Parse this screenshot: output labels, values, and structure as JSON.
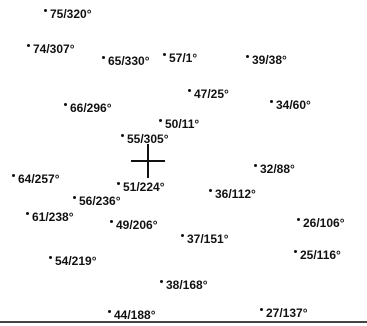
{
  "points": [
    {
      "label": "75/320°"
    },
    {
      "label": "74/307°"
    },
    {
      "label": "65/330°"
    },
    {
      "label": "57/1°"
    },
    {
      "label": "39/38°"
    },
    {
      "label": "47/25°"
    },
    {
      "label": "66/296°"
    },
    {
      "label": "34/60°"
    },
    {
      "label": "50/11°"
    },
    {
      "label": "55/305°"
    },
    {
      "label": "32/88°"
    },
    {
      "label": "64/257°"
    },
    {
      "label": "51/224°"
    },
    {
      "label": "36/112°"
    },
    {
      "label": "56/236°"
    },
    {
      "label": "61/238°"
    },
    {
      "label": "49/206°"
    },
    {
      "label": "26/106°"
    },
    {
      "label": "37/151°"
    },
    {
      "label": "25/116°"
    },
    {
      "label": "54/219°"
    },
    {
      "label": "38/168°"
    },
    {
      "label": "44/188°"
    },
    {
      "label": "27/137°"
    }
  ]
}
